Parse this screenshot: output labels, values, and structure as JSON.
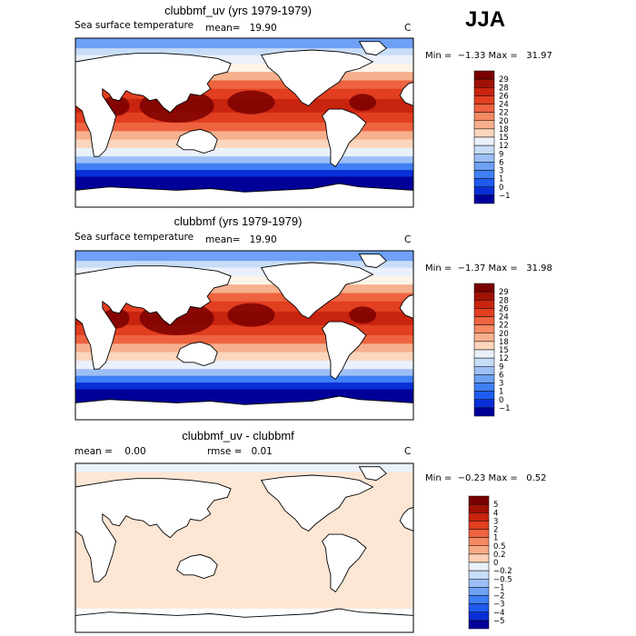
{
  "season": "JJA",
  "colors": {
    "sst_scale": [
      "#000099",
      "#0a2fd6",
      "#1f5bf0",
      "#3f7ff5",
      "#6ea0f5",
      "#9dbff5",
      "#c7dcf7",
      "#eaf1fb",
      "#fff4e8",
      "#fbd6bd",
      "#f7b08d",
      "#f48a63",
      "#ee6340",
      "#e23e20",
      "#c8240f",
      "#a01205",
      "#7a0000"
    ],
    "diff_scale": [
      "#000099",
      "#0a2fd6",
      "#1f5bf0",
      "#3f7ff5",
      "#6ea0f5",
      "#9dbff5",
      "#c7dcf7",
      "#eaf1fb",
      "#fde6d4",
      "#fbd0b4",
      "#f7ab86",
      "#f48a63",
      "#ee6340",
      "#e23e20",
      "#c8240f",
      "#a01205",
      "#7a0000"
    ]
  },
  "panels": [
    {
      "title": "clubbmf_uv (yrs 1979-1979)",
      "left_label": "Sea surface temperature",
      "stat1": "mean=   19.90",
      "stat2": "",
      "units": "C",
      "min_max": "Min =  −1.33 Max =   31.97",
      "colorbar_labels": [
        "29",
        "28",
        "26",
        "24",
        "22",
        "20",
        "18",
        "15",
        "12",
        "9",
        "6",
        "3",
        "1",
        "0",
        "−1"
      ]
    },
    {
      "title": "clubbmf (yrs 1979-1979)",
      "left_label": "Sea surface temperature",
      "stat1": "mean=   19.90",
      "stat2": "",
      "units": "C",
      "min_max": "Min =  −1.37 Max =   31.98",
      "colorbar_labels": [
        "29",
        "28",
        "26",
        "24",
        "22",
        "20",
        "18",
        "15",
        "12",
        "9",
        "6",
        "3",
        "1",
        "0",
        "−1"
      ]
    },
    {
      "title": "clubbmf_uv - clubbmf",
      "left_label": "mean =    0.00",
      "stat1": "rmse =   0.01",
      "stat2": "",
      "units": "C",
      "min_max": "Min =  −0.23 Max =   0.52",
      "colorbar_labels": [
        "5",
        "4",
        "3",
        "2",
        "1",
        "0.5",
        "0.2",
        "0",
        "−0.2",
        "−0.5",
        "−1",
        "−2",
        "−3",
        "−4",
        "−5"
      ]
    }
  ],
  "chart_data": [
    {
      "type": "heatmap",
      "title": "clubbmf_uv (yrs 1979-1979)",
      "variable": "Sea surface temperature",
      "units": "C",
      "mean": 19.9,
      "min": -1.33,
      "max": 31.97,
      "contour_levels": [
        -1,
        0,
        1,
        3,
        6,
        9,
        12,
        15,
        18,
        20,
        22,
        24,
        26,
        28,
        29
      ]
    },
    {
      "type": "heatmap",
      "title": "clubbmf (yrs 1979-1979)",
      "variable": "Sea surface temperature",
      "units": "C",
      "mean": 19.9,
      "min": -1.37,
      "max": 31.98,
      "contour_levels": [
        -1,
        0,
        1,
        3,
        6,
        9,
        12,
        15,
        18,
        20,
        22,
        24,
        26,
        28,
        29
      ]
    },
    {
      "type": "heatmap",
      "title": "clubbmf_uv - clubbmf",
      "units": "C",
      "mean": 0.0,
      "rmse": 0.01,
      "min": -0.23,
      "max": 0.52,
      "contour_levels": [
        -5,
        -4,
        -3,
        -2,
        -1,
        -0.5,
        -0.2,
        0,
        0.2,
        0.5,
        1,
        2,
        3,
        4,
        5
      ]
    }
  ]
}
